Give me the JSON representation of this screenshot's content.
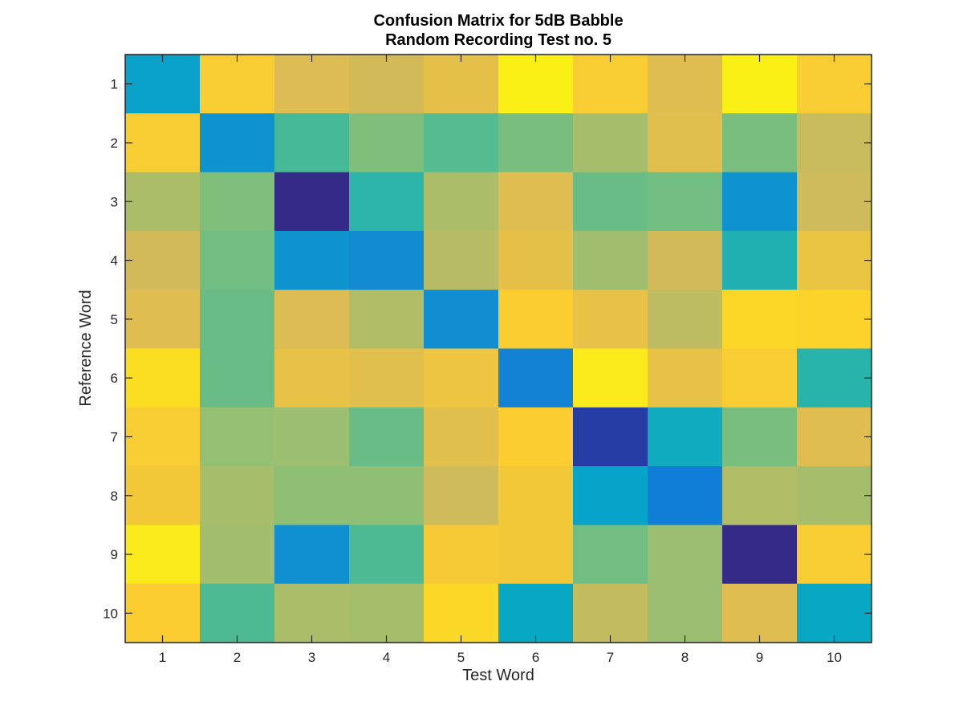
{
  "chart_data": {
    "type": "heatmap",
    "title": "Confusion Matrix for 5dB Babble",
    "subtitle": "Random Recording Test no. 5",
    "xlabel": "Test Word",
    "ylabel": "Reference Word",
    "x_categories": [
      "1",
      "2",
      "3",
      "4",
      "5",
      "6",
      "7",
      "8",
      "9",
      "10"
    ],
    "y_categories": [
      "1",
      "2",
      "3",
      "4",
      "5",
      "6",
      "7",
      "8",
      "9",
      "10"
    ],
    "colormap": "parula",
    "grid": false,
    "colorbar": false,
    "values": [
      [
        0.35,
        0.86,
        0.76,
        0.74,
        0.79,
        0.97,
        0.86,
        0.77,
        0.97,
        0.86
      ],
      [
        0.86,
        0.3,
        0.52,
        0.6,
        0.54,
        0.59,
        0.66,
        0.78,
        0.59,
        0.72
      ],
      [
        0.67,
        0.6,
        0.0,
        0.47,
        0.67,
        0.77,
        0.57,
        0.58,
        0.3,
        0.73
      ],
      [
        0.74,
        0.58,
        0.3,
        0.27,
        0.69,
        0.79,
        0.65,
        0.74,
        0.44,
        0.81
      ],
      [
        0.77,
        0.57,
        0.76,
        0.68,
        0.28,
        0.87,
        0.8,
        0.7,
        0.9,
        0.89
      ],
      [
        0.92,
        0.57,
        0.8,
        0.78,
        0.82,
        0.24,
        0.95,
        0.8,
        0.86,
        0.46
      ],
      [
        0.86,
        0.63,
        0.64,
        0.57,
        0.78,
        0.87,
        0.04,
        0.4,
        0.59,
        0.77
      ],
      [
        0.84,
        0.66,
        0.62,
        0.62,
        0.73,
        0.84,
        0.36,
        0.22,
        0.68,
        0.66
      ],
      [
        0.95,
        0.65,
        0.29,
        0.53,
        0.85,
        0.84,
        0.58,
        0.64,
        0.0,
        0.86
      ],
      [
        0.87,
        0.53,
        0.67,
        0.66,
        0.9,
        0.38,
        0.71,
        0.64,
        0.77,
        0.38
      ]
    ]
  },
  "colors": {
    "axes_edge": "#262626",
    "background": "#ffffff",
    "parula_stops": [
      "#352a87",
      "#0363e1",
      "#1485d4",
      "#06a7c6",
      "#38b99e",
      "#92bf73",
      "#d9ba56",
      "#fcce2e",
      "#f9fb0e"
    ]
  }
}
